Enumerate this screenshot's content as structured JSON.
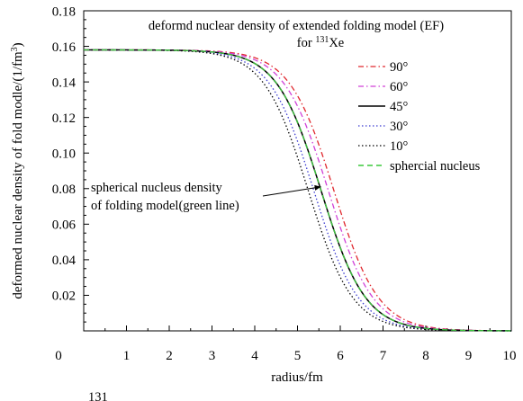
{
  "chart_data": {
    "type": "line",
    "title_line1": "deformd nuclear density of extended folding model (EF)",
    "title_line2_prefix": "for ",
    "title_sup": "131",
    "title_element": "Xe",
    "xlabel": "radius/fm",
    "ylabel_text": "deformed nuclear density of fold modle/(1/fm",
    "ylabel_sup": "3",
    "ylabel_suffix": ")",
    "xlim": [
      0,
      10
    ],
    "ylim": [
      0,
      0.18
    ],
    "x_ticks": [
      "0",
      "1",
      "2",
      "3",
      "4",
      "5",
      "6",
      "7",
      "8",
      "9",
      "10"
    ],
    "y_ticks": [
      "0.02",
      "0.04",
      "0.06",
      "0.08",
      "0.10",
      "0.12",
      "0.14",
      "0.16",
      "0.18"
    ],
    "grid": false,
    "legend_position": "top-right",
    "series": [
      {
        "name": "90°",
        "color": "#e0282e",
        "dash": "dashdot",
        "plateau": 0.158,
        "half_radius": 5.85,
        "diffuseness": 0.52
      },
      {
        "name": "60°",
        "color": "#d040d8",
        "dash": "dashdot",
        "plateau": 0.158,
        "half_radius": 5.72,
        "diffuseness": 0.52
      },
      {
        "name": "45°",
        "color": "#000000",
        "dash": "solid",
        "plateau": 0.158,
        "half_radius": 5.55,
        "diffuseness": 0.52
      },
      {
        "name": "30°",
        "color": "#3b3bd0",
        "dash": "dot",
        "plateau": 0.158,
        "half_radius": 5.38,
        "diffuseness": 0.52
      },
      {
        "name": "10°",
        "color": "#000000",
        "dash": "dot",
        "plateau": 0.158,
        "half_radius": 5.25,
        "diffuseness": 0.52
      },
      {
        "name": "sphercial nucleus",
        "color": "#3cc83c",
        "dash": "dash",
        "plateau": 0.158,
        "half_radius": 5.55,
        "diffuseness": 0.52
      }
    ],
    "annotation": {
      "line1": "spherical nucleus density",
      "line2": "of folding model(green line)",
      "target_x": 5.55,
      "target_y": 0.081
    }
  },
  "caption_fragment": "131"
}
